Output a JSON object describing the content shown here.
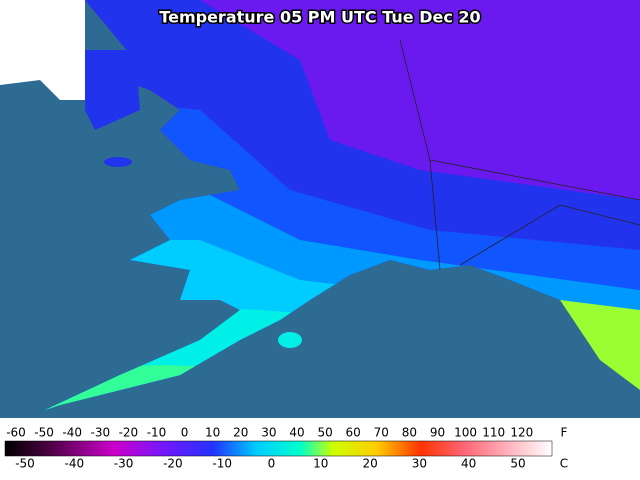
{
  "title": "Temperature 05 PM UTC Tue Dec 20",
  "colorbar": {
    "fahrenheit": {
      "ticks": [
        -60,
        -50,
        -40,
        -30,
        -20,
        -10,
        0,
        10,
        20,
        30,
        40,
        50,
        60,
        70,
        80,
        90,
        100,
        110,
        120
      ],
      "unit": "F"
    },
    "celsius": {
      "ticks": [
        -50,
        -40,
        -30,
        -20,
        -10,
        0,
        10,
        20,
        30,
        40,
        50
      ],
      "unit": "C"
    }
  }
}
